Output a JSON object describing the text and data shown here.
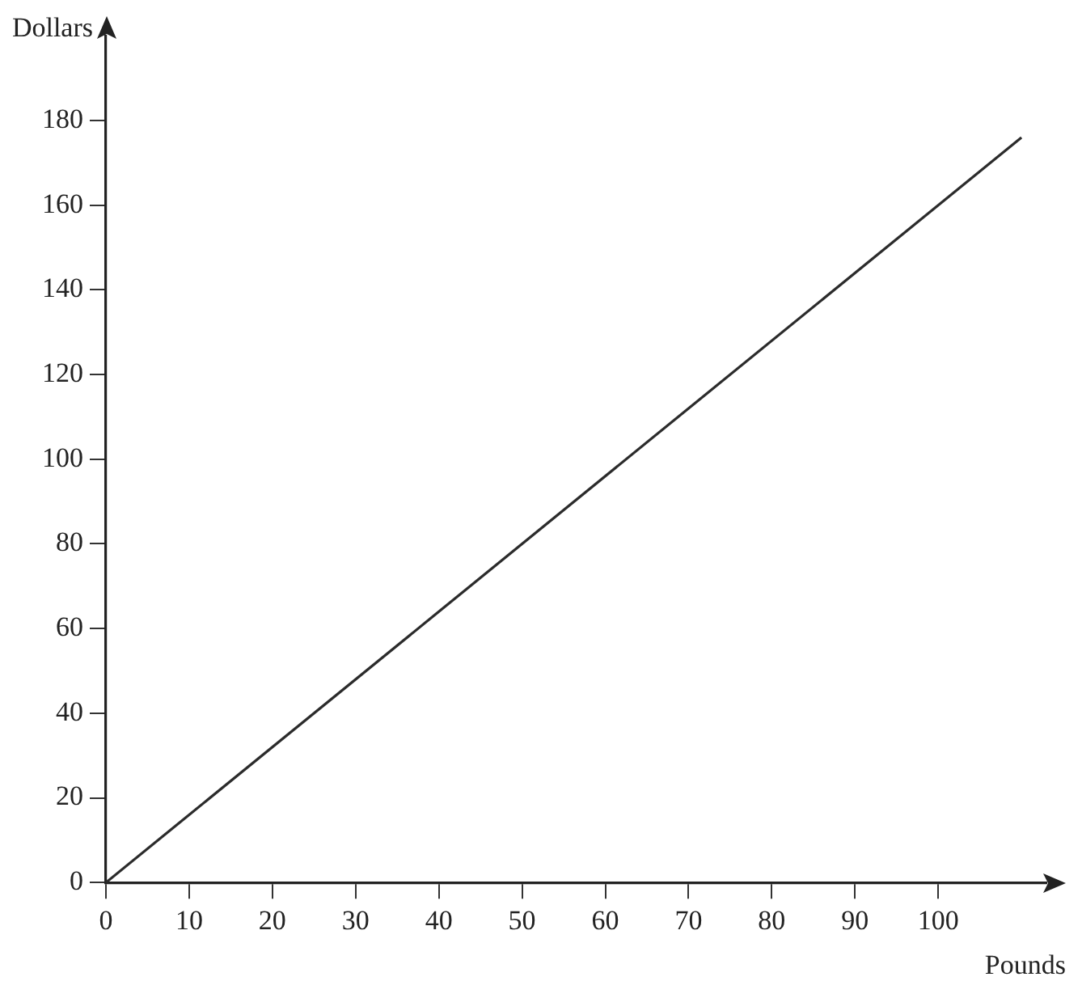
{
  "chart_data": {
    "type": "line",
    "xlabel": "Pounds",
    "ylabel": "Dollars",
    "x": [
      0,
      110
    ],
    "series": [
      {
        "color": "#2b2b2b",
        "values": [
          0,
          176
        ]
      }
    ],
    "xlim": [
      0,
      113
    ],
    "ylim": [
      0,
      200
    ],
    "xticks": [
      0,
      10,
      20,
      30,
      40,
      50,
      60,
      70,
      80,
      90,
      100
    ],
    "yticks": [
      0,
      20,
      40,
      60,
      80,
      100,
      120,
      140,
      160,
      180
    ],
    "grid": false,
    "legend": false,
    "marker": "none",
    "line_style": "solid"
  }
}
